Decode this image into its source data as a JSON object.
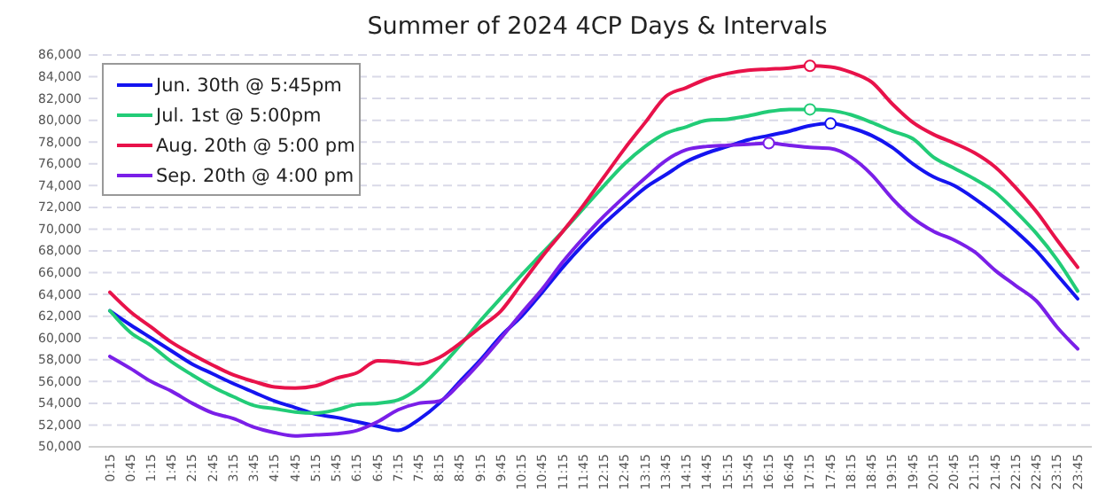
{
  "chart_data": {
    "type": "line",
    "title": "Summer of 2024 4CP Days & Intervals",
    "categories": [
      "0:15",
      "0:45",
      "1:15",
      "1:45",
      "2:15",
      "2:45",
      "3:15",
      "3:45",
      "4:15",
      "4:45",
      "5:15",
      "5:45",
      "6:15",
      "6:45",
      "7:15",
      "7:45",
      "8:15",
      "8:45",
      "9:15",
      "9:45",
      "10:15",
      "10:45",
      "11:15",
      "11:45",
      "12:15",
      "12:45",
      "13:15",
      "13:45",
      "14:15",
      "14:45",
      "15:15",
      "15:45",
      "16:15",
      "16:45",
      "17:15",
      "17:45",
      "18:15",
      "18:45",
      "19:15",
      "19:45",
      "20:15",
      "20:45",
      "21:15",
      "21:45",
      "22:15",
      "22:45",
      "23:15",
      "23:45"
    ],
    "series": [
      {
        "name": "Jun. 30th @ 5:45pm",
        "color": "#1414f0",
        "values": [
          62500,
          61200,
          60000,
          58800,
          57600,
          56700,
          55800,
          55000,
          54200,
          53600,
          53000,
          52700,
          52300,
          51900,
          51500,
          52500,
          54000,
          56000,
          58000,
          60200,
          62000,
          64200,
          66500,
          68600,
          70500,
          72200,
          73800,
          75000,
          76200,
          77000,
          77600,
          78200,
          78600,
          79000,
          79500,
          79700,
          79300,
          78600,
          77500,
          76000,
          74800,
          74000,
          72800,
          71400,
          69800,
          68000,
          65800,
          63600
        ]
      },
      {
        "name": "Jul. 1st @ 5:00pm",
        "color": "#22cc77",
        "values": [
          62500,
          60500,
          59300,
          57800,
          56600,
          55500,
          54600,
          53800,
          53500,
          53200,
          53100,
          53400,
          53900,
          54000,
          54300,
          55400,
          57200,
          59300,
          61600,
          63700,
          65800,
          67800,
          69800,
          71900,
          74000,
          76000,
          77600,
          78800,
          79400,
          80000,
          80100,
          80400,
          80800,
          81000,
          81000,
          80900,
          80500,
          79800,
          79000,
          78300,
          76600,
          75600,
          74600,
          73400,
          71600,
          69600,
          67200,
          64300
        ]
      },
      {
        "name": "Aug. 20th @ 5:00 pm",
        "color": "#e8124a",
        "values": [
          64200,
          62400,
          61000,
          59600,
          58500,
          57500,
          56600,
          56000,
          55500,
          55400,
          55600,
          56300,
          56800,
          57900,
          57800,
          57600,
          58200,
          59500,
          61000,
          62500,
          65000,
          67500,
          69800,
          72200,
          74800,
          77400,
          79800,
          82200,
          83000,
          83800,
          84300,
          84600,
          84700,
          84800,
          85000,
          84900,
          84400,
          83500,
          81500,
          79800,
          78700,
          77900,
          77000,
          75700,
          73800,
          71600,
          69000,
          66500
        ]
      },
      {
        "name": "Sep. 20th @ 4:00 pm",
        "color": "#7a1fe8",
        "values": [
          58300,
          57200,
          56000,
          55100,
          54000,
          53100,
          52600,
          51800,
          51300,
          51000,
          51100,
          51200,
          51500,
          52300,
          53400,
          54000,
          54200,
          55800,
          57800,
          60000,
          62300,
          64500,
          67000,
          69200,
          71200,
          73000,
          74700,
          76300,
          77300,
          77600,
          77700,
          77800,
          77900,
          77700,
          77500,
          77400,
          76600,
          75000,
          72800,
          71000,
          69800,
          69000,
          67900,
          66200,
          64800,
          63400,
          61000,
          59000
        ]
      },
      {
        "type": "scatter",
        "marker": "circle",
        "color": "#1414f0",
        "x": [
          "17:45"
        ],
        "values": [
          79700
        ]
      },
      {
        "type": "scatter",
        "marker": "circle",
        "color": "#22cc77",
        "x": [
          "17:15"
        ],
        "values": [
          81000
        ]
      },
      {
        "type": "scatter",
        "marker": "circle",
        "color": "#e8124a",
        "x": [
          "17:15"
        ],
        "values": [
          85000
        ]
      },
      {
        "type": "scatter",
        "marker": "circle",
        "color": "#7a1fe8",
        "x": [
          "16:15"
        ],
        "values": [
          77900
        ]
      }
    ],
    "ylim": [
      50000,
      86000
    ],
    "yticks": [
      {
        "value": 50000,
        "label": "50,000"
      },
      {
        "value": 52000,
        "label": "52,000"
      },
      {
        "value": 54000,
        "label": "54,000"
      },
      {
        "value": 56000,
        "label": "56,000"
      },
      {
        "value": 58000,
        "label": "58,000"
      },
      {
        "value": 60000,
        "label": "60,000"
      },
      {
        "value": 62000,
        "label": "62,000"
      },
      {
        "value": 64000,
        "label": "64,000"
      },
      {
        "value": 66000,
        "label": "66,000"
      },
      {
        "value": 68000,
        "label": "68,000"
      },
      {
        "value": 70000,
        "label": "70,000"
      },
      {
        "value": 72000,
        "label": "72,000"
      },
      {
        "value": 74000,
        "label": "74,000"
      },
      {
        "value": 76000,
        "label": "76,000"
      },
      {
        "value": 78000,
        "label": "78,000"
      },
      {
        "value": 80000,
        "label": "80,000"
      },
      {
        "value": 82000,
        "label": "82,000"
      },
      {
        "value": 84000,
        "label": "84,000"
      },
      {
        "value": 86000,
        "label": "86,000"
      }
    ],
    "grid": "y",
    "legend": "top left",
    "marker": "none",
    "line_style": "solid"
  }
}
